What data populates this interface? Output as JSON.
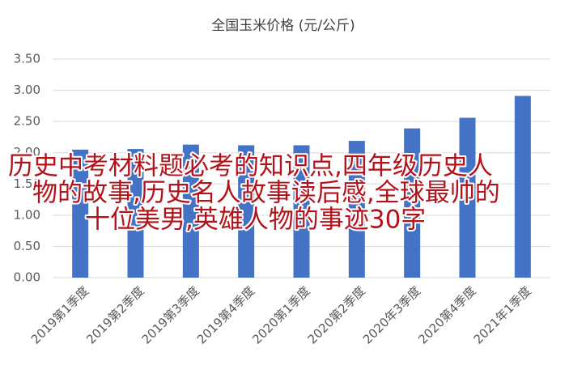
{
  "chart_data": {
    "type": "bar",
    "title": "全国玉米价格 (元/公斤)",
    "categories": [
      "2019第1季度",
      "2019第2季度",
      "2019第3季度",
      "2019第4季度",
      "2020第1季度",
      "2020第2季度",
      "2020年3季度",
      "2020第4季度",
      "2021年1季度"
    ],
    "values": [
      2.05,
      2.06,
      2.13,
      2.12,
      2.12,
      2.19,
      2.39,
      2.56,
      2.91
    ],
    "color": "#4472c4",
    "ylim": [
      0,
      3.5
    ],
    "yticks": [
      {
        "value": 0,
        "label": "0.00"
      },
      {
        "value": 0.5,
        "label": "0.50"
      },
      {
        "value": 1,
        "label": "1.00"
      },
      {
        "value": 1.5,
        "label": "1.50"
      },
      {
        "value": 2,
        "label": "2.00"
      },
      {
        "value": 2.5,
        "label": "2.50"
      },
      {
        "value": 3,
        "label": "3.00"
      },
      {
        "value": 3.5,
        "label": "3.50"
      }
    ],
    "grid": true,
    "annotations": [
      "历史中考材料题必考的知识点,四年级历史人",
      "物的故事,历史名人故事读后感,全球最帅的",
      "十位美男,英雄人物的事迹30字"
    ]
  }
}
